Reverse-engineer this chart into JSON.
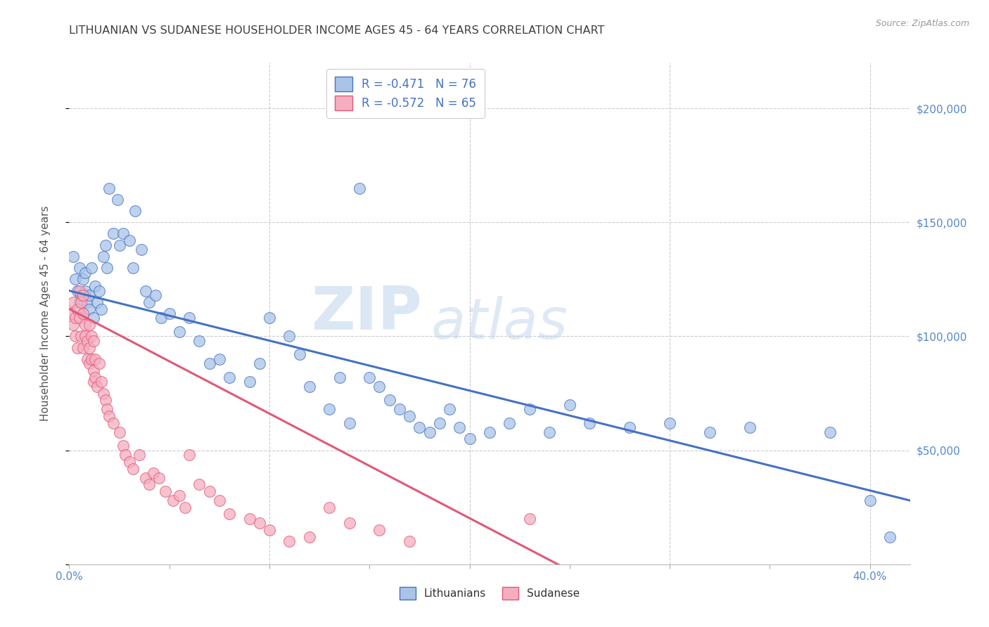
{
  "title": "LITHUANIAN VS SUDANESE HOUSEHOLDER INCOME AGES 45 - 64 YEARS CORRELATION CHART",
  "source": "Source: ZipAtlas.com",
  "ylabel": "Householder Income Ages 45 - 64 years",
  "xlim": [
    0.0,
    0.42
  ],
  "ylim": [
    0,
    220000
  ],
  "xticks": [
    0.0,
    0.05,
    0.1,
    0.15,
    0.2,
    0.25,
    0.3,
    0.35,
    0.4
  ],
  "xticklabels": [
    "0.0%",
    "",
    "",
    "",
    "",
    "",
    "",
    "",
    "40.0%"
  ],
  "yticks": [
    0,
    50000,
    100000,
    150000,
    200000
  ],
  "yticklabels_right": [
    "",
    "$50,000",
    "$100,000",
    "$150,000",
    "$200,000"
  ],
  "blue_R": -0.471,
  "blue_N": 76,
  "pink_R": -0.572,
  "pink_N": 65,
  "blue_color": "#aac4e8",
  "pink_color": "#f5aec0",
  "blue_line_color": "#4472c4",
  "pink_line_color": "#e05878",
  "blue_label": "Lithuanians",
  "pink_label": "Sudanese",
  "legend_text_color": "#4472c4",
  "watermark_zip": "ZIP",
  "watermark_atlas": "atlas",
  "background_color": "#ffffff",
  "grid_color": "#cccccc",
  "title_color": "#404040",
  "axis_label_color": "#555555",
  "tick_label_color": "#5588cc",
  "blue_x": [
    0.002,
    0.003,
    0.004,
    0.005,
    0.005,
    0.006,
    0.007,
    0.007,
    0.008,
    0.008,
    0.009,
    0.01,
    0.01,
    0.011,
    0.012,
    0.013,
    0.014,
    0.015,
    0.016,
    0.017,
    0.018,
    0.019,
    0.02,
    0.022,
    0.024,
    0.025,
    0.027,
    0.03,
    0.032,
    0.033,
    0.036,
    0.038,
    0.04,
    0.043,
    0.046,
    0.05,
    0.055,
    0.06,
    0.065,
    0.07,
    0.075,
    0.08,
    0.09,
    0.095,
    0.1,
    0.11,
    0.115,
    0.12,
    0.13,
    0.135,
    0.14,
    0.145,
    0.15,
    0.155,
    0.16,
    0.165,
    0.17,
    0.175,
    0.18,
    0.185,
    0.19,
    0.195,
    0.2,
    0.21,
    0.22,
    0.23,
    0.24,
    0.25,
    0.26,
    0.28,
    0.3,
    0.32,
    0.34,
    0.38,
    0.4,
    0.41
  ],
  "blue_y": [
    135000,
    125000,
    120000,
    130000,
    115000,
    118000,
    125000,
    110000,
    128000,
    120000,
    115000,
    112000,
    118000,
    130000,
    108000,
    122000,
    115000,
    120000,
    112000,
    135000,
    140000,
    130000,
    165000,
    145000,
    160000,
    140000,
    145000,
    142000,
    130000,
    155000,
    138000,
    120000,
    115000,
    118000,
    108000,
    110000,
    102000,
    108000,
    98000,
    88000,
    90000,
    82000,
    80000,
    88000,
    108000,
    100000,
    92000,
    78000,
    68000,
    82000,
    62000,
    165000,
    82000,
    78000,
    72000,
    68000,
    65000,
    60000,
    58000,
    62000,
    68000,
    60000,
    55000,
    58000,
    62000,
    68000,
    58000,
    70000,
    62000,
    60000,
    62000,
    58000,
    60000,
    58000,
    28000,
    12000
  ],
  "pink_x": [
    0.001,
    0.002,
    0.002,
    0.003,
    0.003,
    0.004,
    0.004,
    0.005,
    0.005,
    0.006,
    0.006,
    0.007,
    0.007,
    0.007,
    0.008,
    0.008,
    0.009,
    0.009,
    0.01,
    0.01,
    0.01,
    0.011,
    0.011,
    0.012,
    0.012,
    0.012,
    0.013,
    0.013,
    0.014,
    0.015,
    0.016,
    0.017,
    0.018,
    0.019,
    0.02,
    0.022,
    0.025,
    0.027,
    0.028,
    0.03,
    0.032,
    0.035,
    0.038,
    0.04,
    0.042,
    0.045,
    0.048,
    0.052,
    0.055,
    0.058,
    0.06,
    0.065,
    0.07,
    0.075,
    0.08,
    0.09,
    0.095,
    0.1,
    0.11,
    0.12,
    0.13,
    0.14,
    0.155,
    0.17,
    0.23
  ],
  "pink_y": [
    110000,
    115000,
    105000,
    108000,
    100000,
    112000,
    95000,
    120000,
    108000,
    115000,
    100000,
    118000,
    110000,
    95000,
    105000,
    100000,
    98000,
    90000,
    105000,
    95000,
    88000,
    100000,
    90000,
    98000,
    85000,
    80000,
    90000,
    82000,
    78000,
    88000,
    80000,
    75000,
    72000,
    68000,
    65000,
    62000,
    58000,
    52000,
    48000,
    45000,
    42000,
    48000,
    38000,
    35000,
    40000,
    38000,
    32000,
    28000,
    30000,
    25000,
    48000,
    35000,
    32000,
    28000,
    22000,
    20000,
    18000,
    15000,
    10000,
    12000,
    25000,
    18000,
    15000,
    10000,
    20000
  ]
}
